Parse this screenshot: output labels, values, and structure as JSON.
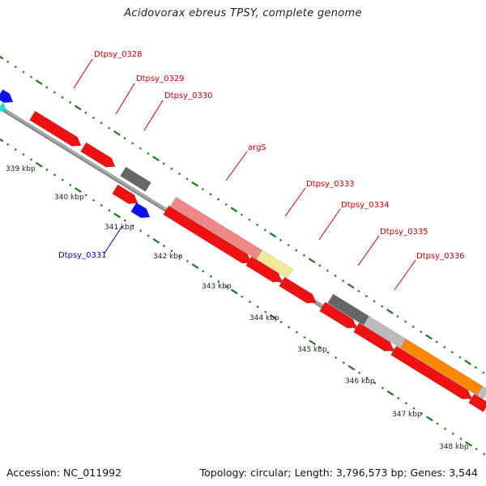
{
  "title": "Acidovorax ebreus TPSY, complete genome",
  "footer": {
    "accession": "Accession: NC_011992",
    "summary": "Topology: circular; Length: 3,796,573 bp; Genes: 3,544"
  },
  "colors": {
    "label_red": "#cc0000",
    "label_blue": "#0000cc",
    "backbone": "#8c8c8c",
    "tick_green": "#1e7a1e"
  },
  "ticks": [
    "339 kbp",
    "340 kbp",
    "341 kbp",
    "342 kbp",
    "343 kbp",
    "344 kbp",
    "345 kbp",
    "346 kbp",
    "347 kbp",
    "348 kbp"
  ],
  "labels": [
    {
      "text": "Dtpsy_0328",
      "color": "#cc0000"
    },
    {
      "text": "Dtpsy_0329",
      "color": "#cc0000"
    },
    {
      "text": "Dtpsy_0330",
      "color": "#cc0000"
    },
    {
      "text": "argS",
      "color": "#cc0000"
    },
    {
      "text": "Dtpsy_0333",
      "color": "#cc0000"
    },
    {
      "text": "Dtpsy_0334",
      "color": "#cc0000"
    },
    {
      "text": "Dtpsy_0335",
      "color": "#cc0000"
    },
    {
      "text": "Dtpsy_0336",
      "color": "#cc0000"
    },
    {
      "text": "Dtpsy_0331",
      "color": "#0000cc"
    }
  ]
}
